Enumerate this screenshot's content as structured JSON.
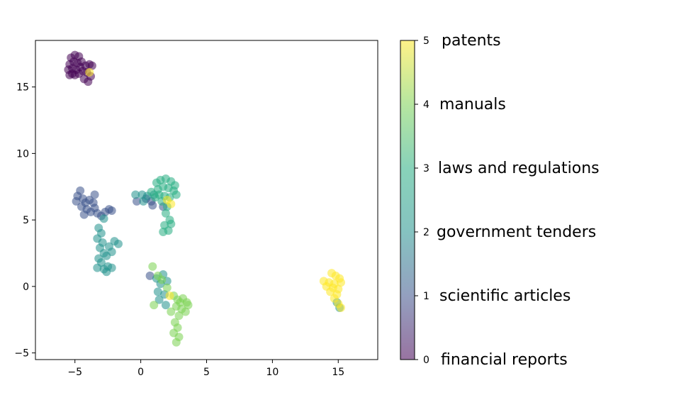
{
  "chart_data": {
    "type": "scatter",
    "title": "",
    "xlabel": "",
    "ylabel": "",
    "xlim": [
      -8,
      18
    ],
    "ylim": [
      -5.5,
      18.5
    ],
    "xticks": [
      -5,
      0,
      5,
      10,
      15
    ],
    "yticks": [
      -5,
      0,
      5,
      10,
      15
    ],
    "grid": false,
    "colormap": "viridis",
    "point_alpha": 0.55,
    "colorbar": {
      "range": [
        0,
        5
      ],
      "ticks": [
        0,
        1,
        2,
        3,
        4,
        5
      ],
      "tick_labels": [
        "0",
        "1",
        "2",
        "3",
        "4",
        "5"
      ],
      "category_labels": [
        "financial reports",
        "scientific articles",
        "government tenders",
        "laws and regulations",
        "manuals",
        "patents"
      ],
      "colors": [
        "#440154",
        "#3b528b",
        "#21918c",
        "#27ad81",
        "#7ad151",
        "#fde725"
      ]
    },
    "clusters": [
      {
        "category": 0,
        "label": "financial reports",
        "points": [
          [
            -5.3,
            17.2
          ],
          [
            -5.0,
            17.4
          ],
          [
            -4.7,
            17.3
          ],
          [
            -5.4,
            16.7
          ],
          [
            -5.1,
            16.9
          ],
          [
            -4.8,
            16.8
          ],
          [
            -4.5,
            16.9
          ],
          [
            -5.5,
            16.3
          ],
          [
            -5.2,
            16.4
          ],
          [
            -4.9,
            16.3
          ],
          [
            -4.6,
            16.5
          ],
          [
            -5.4,
            15.9
          ],
          [
            -5.0,
            15.9
          ],
          [
            -4.7,
            16.0
          ],
          [
            -4.4,
            16.2
          ],
          [
            -4.2,
            16.6
          ],
          [
            -3.9,
            16.7
          ],
          [
            -3.7,
            16.6
          ],
          [
            -4.1,
            16.1
          ],
          [
            -3.8,
            15.8
          ],
          [
            -4.3,
            15.6
          ],
          [
            -4.0,
            15.4
          ],
          [
            -5.2,
            16.0
          ]
        ]
      },
      {
        "category": 1,
        "label": "scientific articles",
        "points": [
          [
            -4.6,
            7.2
          ],
          [
            -4.8,
            6.8
          ],
          [
            -4.4,
            6.6
          ],
          [
            -4.9,
            6.4
          ],
          [
            -4.2,
            6.3
          ],
          [
            -3.9,
            6.5
          ],
          [
            -3.6,
            6.3
          ],
          [
            -4.5,
            6.0
          ],
          [
            -4.1,
            5.8
          ],
          [
            -3.8,
            5.6
          ],
          [
            -4.3,
            5.4
          ],
          [
            -3.5,
            5.9
          ],
          [
            -3.3,
            5.5
          ],
          [
            -3.0,
            5.3
          ],
          [
            -2.7,
            5.6
          ],
          [
            -2.4,
            5.8
          ],
          [
            -2.2,
            5.7
          ],
          [
            -0.3,
            6.4
          ],
          [
            0.4,
            6.6
          ],
          [
            0.8,
            6.4
          ],
          [
            0.9,
            6.1
          ],
          [
            -3.5,
            6.9
          ],
          [
            1.7,
            6.0
          ],
          [
            0.7,
            0.8
          ]
        ]
      },
      {
        "category": 2,
        "label": "government tenders",
        "points": [
          [
            -3.2,
            4.4
          ],
          [
            -3.0,
            4.0
          ],
          [
            -3.3,
            3.6
          ],
          [
            -2.9,
            3.3
          ],
          [
            -3.1,
            2.9
          ],
          [
            -2.8,
            2.5
          ],
          [
            -3.2,
            2.1
          ],
          [
            -3.0,
            1.8
          ],
          [
            -3.3,
            1.4
          ],
          [
            -2.8,
            1.3
          ],
          [
            -2.5,
            1.5
          ],
          [
            -2.2,
            1.4
          ],
          [
            -2.6,
            1.1
          ],
          [
            -2.4,
            3.0
          ],
          [
            -2.0,
            3.4
          ],
          [
            -1.7,
            3.2
          ],
          [
            -2.6,
            2.3
          ],
          [
            -2.2,
            2.6
          ],
          [
            -0.4,
            6.9
          ],
          [
            0.1,
            6.9
          ],
          [
            0.5,
            6.8
          ],
          [
            1.0,
            6.9
          ],
          [
            0.2,
            6.4
          ],
          [
            1.2,
            0.6
          ],
          [
            1.5,
            0.2
          ],
          [
            1.3,
            -0.4
          ],
          [
            1.8,
            -0.6
          ],
          [
            1.4,
            -1.0
          ],
          [
            1.9,
            -1.4
          ],
          [
            1.7,
            0.9
          ],
          [
            2.0,
            0.4
          ],
          [
            14.9,
            -1.2
          ],
          [
            15.1,
            -1.6
          ],
          [
            -2.8,
            5.1
          ]
        ]
      },
      {
        "category": 3,
        "label": "laws and regulations",
        "points": [
          [
            1.2,
            7.8
          ],
          [
            1.5,
            8.0
          ],
          [
            1.9,
            8.1
          ],
          [
            2.3,
            7.9
          ],
          [
            2.6,
            7.6
          ],
          [
            1.3,
            7.3
          ],
          [
            1.7,
            7.5
          ],
          [
            2.1,
            7.4
          ],
          [
            2.5,
            7.2
          ],
          [
            2.7,
            6.9
          ],
          [
            1.4,
            6.9
          ],
          [
            1.8,
            6.8
          ],
          [
            2.2,
            6.7
          ],
          [
            1.6,
            6.4
          ],
          [
            2.0,
            6.0
          ],
          [
            1.9,
            5.5
          ],
          [
            2.2,
            5.0
          ],
          [
            1.8,
            4.6
          ],
          [
            2.1,
            4.2
          ],
          [
            1.7,
            4.1
          ],
          [
            2.3,
            4.7
          ],
          [
            1.1,
            6.7
          ],
          [
            0.8,
            7.1
          ]
        ]
      },
      {
        "category": 4,
        "label": "manuals",
        "points": [
          [
            0.9,
            1.5
          ],
          [
            1.3,
            0.8
          ],
          [
            1.6,
            0.5
          ],
          [
            2.0,
            -0.1
          ],
          [
            2.5,
            -0.7
          ],
          [
            2.8,
            -1.0
          ],
          [
            3.2,
            -0.9
          ],
          [
            3.5,
            -1.2
          ],
          [
            2.7,
            -1.5
          ],
          [
            3.1,
            -1.7
          ],
          [
            3.4,
            -1.9
          ],
          [
            2.9,
            -2.2
          ],
          [
            2.6,
            -2.7
          ],
          [
            2.8,
            -3.1
          ],
          [
            2.5,
            -3.5
          ],
          [
            2.9,
            -3.8
          ],
          [
            2.7,
            -4.2
          ],
          [
            1.0,
            -1.4
          ],
          [
            3.6,
            -1.4
          ],
          [
            2.3,
            -1.9
          ],
          [
            3.0,
            -1.2
          ]
        ]
      },
      {
        "category": 5,
        "label": "patents",
        "points": [
          [
            14.5,
            1.0
          ],
          [
            14.8,
            0.8
          ],
          [
            15.1,
            0.6
          ],
          [
            13.9,
            0.4
          ],
          [
            14.3,
            0.3
          ],
          [
            14.7,
            0.2
          ],
          [
            15.2,
            0.3
          ],
          [
            14.1,
            0.0
          ],
          [
            14.6,
            -0.1
          ],
          [
            15.0,
            -0.2
          ],
          [
            14.4,
            -0.4
          ],
          [
            14.9,
            -0.6
          ],
          [
            14.7,
            -0.9
          ],
          [
            15.0,
            -1.3
          ],
          [
            15.2,
            -1.6
          ],
          [
            -3.9,
            16.1
          ],
          [
            2.0,
            6.5
          ],
          [
            2.2,
            -0.7
          ],
          [
            2.3,
            6.2
          ]
        ]
      }
    ]
  }
}
